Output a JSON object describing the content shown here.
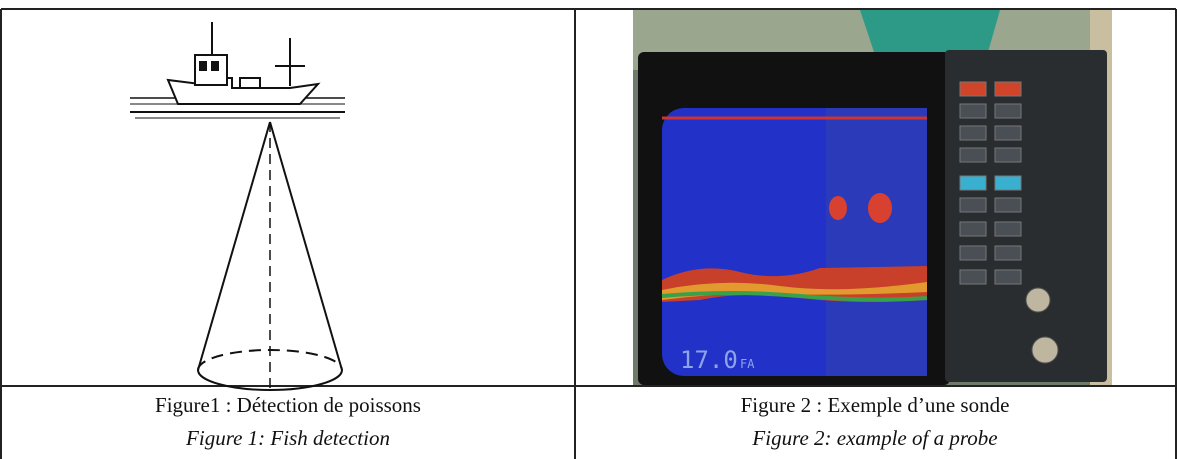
{
  "figures": [
    {
      "caption_fr": "Figure1 : Détection de poissons",
      "caption_en": "Figure 1: Fish detection"
    },
    {
      "caption_fr": "Figure 2 : Exemple d’une sonde",
      "caption_en": "Figure 2: example of a probe",
      "display_reading": "17.0",
      "display_unit": "FA"
    }
  ]
}
